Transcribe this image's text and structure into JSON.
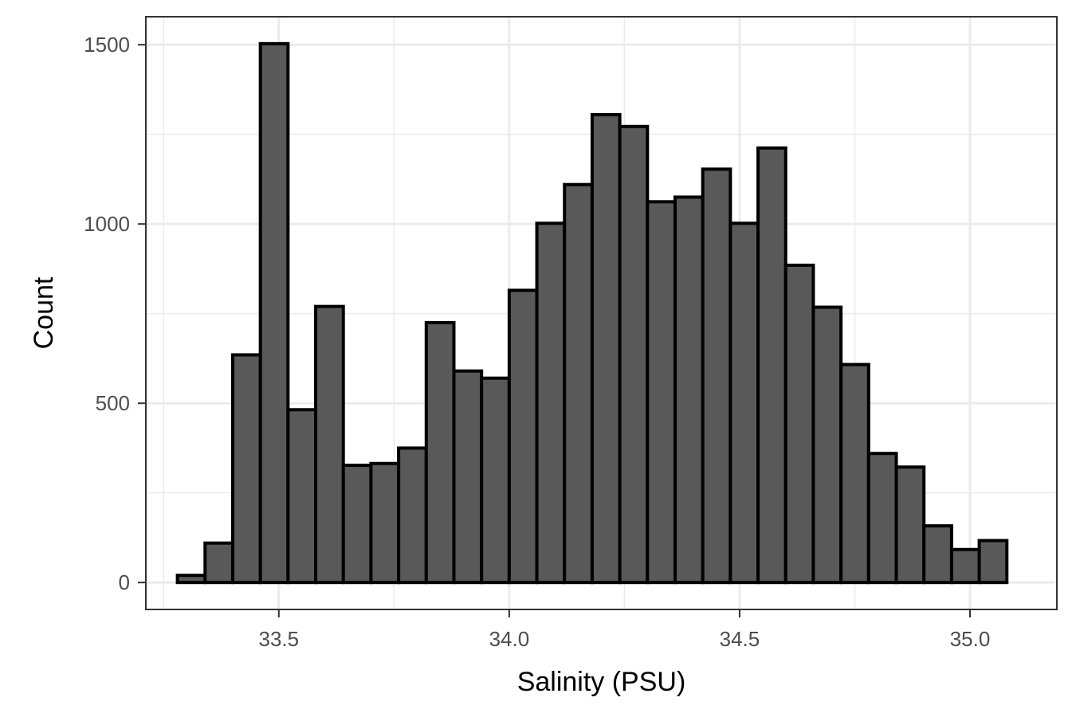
{
  "chart_data": {
    "type": "bar",
    "title": "",
    "xlabel": "Salinity (PSU)",
    "ylabel": "Count",
    "bin_width": 0.06,
    "bins": [
      {
        "x": 33.31,
        "count": 20
      },
      {
        "x": 33.37,
        "count": 110
      },
      {
        "x": 33.43,
        "count": 635
      },
      {
        "x": 33.49,
        "count": 1503
      },
      {
        "x": 33.55,
        "count": 482
      },
      {
        "x": 33.61,
        "count": 770
      },
      {
        "x": 33.67,
        "count": 327
      },
      {
        "x": 33.73,
        "count": 332
      },
      {
        "x": 33.79,
        "count": 375
      },
      {
        "x": 33.85,
        "count": 725
      },
      {
        "x": 33.91,
        "count": 590
      },
      {
        "x": 33.97,
        "count": 570
      },
      {
        "x": 34.03,
        "count": 815
      },
      {
        "x": 34.09,
        "count": 1002
      },
      {
        "x": 34.15,
        "count": 1110
      },
      {
        "x": 34.21,
        "count": 1305
      },
      {
        "x": 34.27,
        "count": 1272
      },
      {
        "x": 34.33,
        "count": 1062
      },
      {
        "x": 34.39,
        "count": 1075
      },
      {
        "x": 34.45,
        "count": 1153
      },
      {
        "x": 34.51,
        "count": 1002
      },
      {
        "x": 34.57,
        "count": 1212
      },
      {
        "x": 34.63,
        "count": 885
      },
      {
        "x": 34.69,
        "count": 768
      },
      {
        "x": 34.75,
        "count": 608
      },
      {
        "x": 34.81,
        "count": 360
      },
      {
        "x": 34.87,
        "count": 322
      },
      {
        "x": 34.93,
        "count": 158
      },
      {
        "x": 34.99,
        "count": 92
      },
      {
        "x": 35.05,
        "count": 117
      }
    ],
    "x_ticks": [
      {
        "value": 33.5,
        "label": "33.5"
      },
      {
        "value": 34.0,
        "label": "34.0"
      },
      {
        "value": 34.5,
        "label": "34.5"
      },
      {
        "value": 35.0,
        "label": "35.0"
      }
    ],
    "y_ticks": [
      {
        "value": 0,
        "label": "0"
      },
      {
        "value": 500,
        "label": "500"
      },
      {
        "value": 1000,
        "label": "1000"
      },
      {
        "value": 1500,
        "label": "1500"
      }
    ],
    "xlim": [
      33.2115,
      35.1885
    ],
    "ylim": [
      -75.15,
      1578.15
    ],
    "grid": true,
    "colors": {
      "bar_fill": "#595959",
      "bar_stroke": "#000000",
      "grid": "#ebebeb",
      "panel_border": "#333333",
      "tick_text": "#4d4d4d"
    }
  }
}
